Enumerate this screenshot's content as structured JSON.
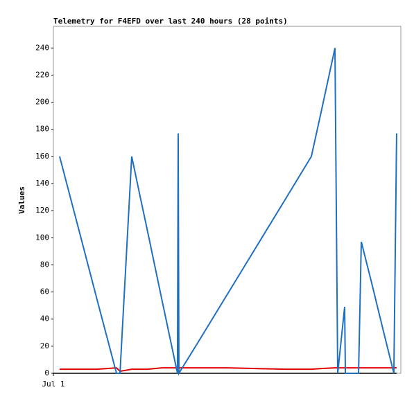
{
  "chart_data": {
    "type": "line",
    "title": "Telemetry for F4EFD over last 240 hours (28 points)",
    "y_label": "Values",
    "x": [
      4.3,
      20,
      30,
      43.6,
      46,
      54.1,
      60,
      65,
      75,
      85.7,
      86.2,
      86.7,
      100,
      120,
      140,
      160,
      178.2,
      185,
      194.5,
      196.4,
      201.2,
      201.7,
      210.8,
      212.7,
      220,
      228,
      235.2,
      237.1
    ],
    "series": [
      {
        "color": "#1f6fbf",
        "values": [
          160,
          96,
          55,
          0,
          0,
          160,
          130,
          105,
          54,
          0,
          177,
          0,
          23,
          58,
          93,
          128,
          160,
          193,
          240,
          0,
          49,
          0,
          0,
          97,
          66,
          31,
          0,
          177
        ]
      },
      {
        "color": "#e00000",
        "values": [
          3,
          3,
          3,
          4,
          1.5,
          3,
          3,
          3,
          4,
          4,
          4,
          4,
          4,
          4,
          3.5,
          3,
          3,
          3.5,
          4,
          4,
          4,
          4,
          4,
          4,
          4,
          4,
          4,
          4
        ]
      }
    ],
    "xlim": [
      0,
      240
    ],
    "xticks": [
      {
        "value": 0,
        "label": "Jul 1"
      }
    ],
    "ylim": [
      0,
      256
    ],
    "yticks": [
      0,
      20,
      40,
      60,
      80,
      100,
      120,
      140,
      160,
      180,
      200,
      220,
      240
    ]
  }
}
